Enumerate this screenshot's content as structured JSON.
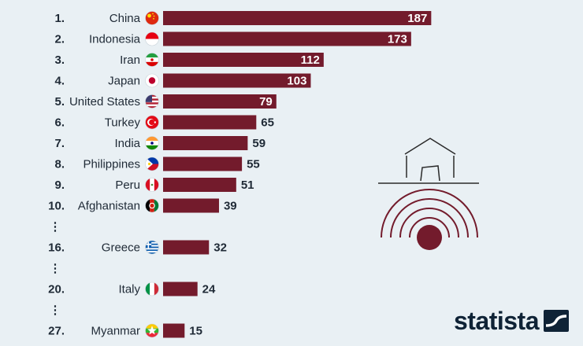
{
  "chart_data": {
    "type": "bar",
    "orientation": "horizontal",
    "title": "",
    "xlabel": "",
    "ylabel": "",
    "xlim": [
      0,
      200
    ],
    "grid": false,
    "legend": "none",
    "bar_color": "#731b2c",
    "ellipsis_marker": "⋮",
    "rows": [
      {
        "rank": "1.",
        "country": "China",
        "value": 187,
        "flag": "china-flag"
      },
      {
        "rank": "2.",
        "country": "Indonesia",
        "value": 173,
        "flag": "indonesia-flag"
      },
      {
        "rank": "3.",
        "country": "Iran",
        "value": 112,
        "flag": "iran-flag"
      },
      {
        "rank": "4.",
        "country": "Japan",
        "value": 103,
        "flag": "japan-flag"
      },
      {
        "rank": "5.",
        "country": "United States",
        "value": 79,
        "flag": "usa-flag"
      },
      {
        "rank": "6.",
        "country": "Turkey",
        "value": 65,
        "flag": "turkey-flag"
      },
      {
        "rank": "7.",
        "country": "India",
        "value": 59,
        "flag": "india-flag"
      },
      {
        "rank": "8.",
        "country": "Philippines",
        "value": 55,
        "flag": "philippines-flag"
      },
      {
        "rank": "9.",
        "country": "Peru",
        "value": 51,
        "flag": "peru-flag"
      },
      {
        "rank": "10.",
        "country": "Afghanistan",
        "value": 39,
        "flag": "afghanistan-flag"
      },
      {
        "ellipsis": true
      },
      {
        "rank": "16.",
        "country": "Greece",
        "value": 32,
        "flag": "greece-flag"
      },
      {
        "ellipsis": true
      },
      {
        "rank": "20.",
        "country": "Italy",
        "value": 24,
        "flag": "italy-flag"
      },
      {
        "ellipsis": true
      },
      {
        "rank": "27.",
        "country": "Myanmar",
        "value": 15,
        "flag": "myanmar-flag"
      }
    ]
  },
  "illustration": {
    "icon": "earthquake-house-icon",
    "color": "#731b2c",
    "line_color": "#2a2a2a"
  },
  "branding": {
    "name": "statista",
    "icon": "statista-logo-icon",
    "color": "#0f2336"
  }
}
